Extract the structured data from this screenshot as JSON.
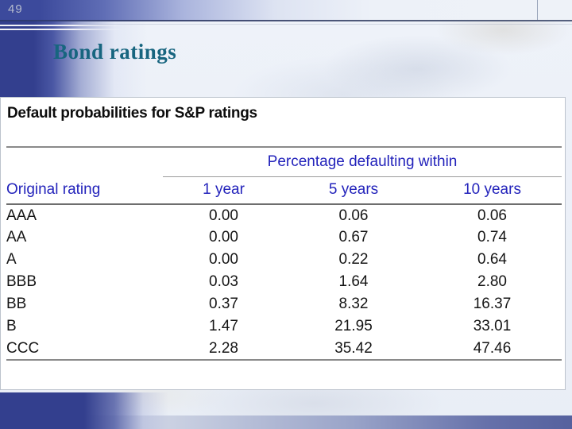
{
  "slide": {
    "page_number": "49",
    "title": "Bond ratings"
  },
  "table": {
    "heading": "Default probabilities for S&P ratings",
    "span_header": "Percentage defaulting within",
    "columns": [
      "Original rating",
      "1 year",
      "5 years",
      "10 years"
    ],
    "rows": [
      [
        "AAA",
        "0.00",
        "0.06",
        "0.06"
      ],
      [
        "AA",
        "0.00",
        "0.67",
        "0.74"
      ],
      [
        "A",
        "0.00",
        "0.22",
        "0.64"
      ],
      [
        "BBB",
        "0.03",
        "1.64",
        "2.80"
      ],
      [
        "BB",
        "0.37",
        "8.32",
        "16.37"
      ],
      [
        "B",
        "1.47",
        "21.95",
        "33.01"
      ],
      [
        "CCC",
        "2.28",
        "35.42",
        "47.46"
      ]
    ]
  },
  "colors": {
    "accent_navy": "#333f8e",
    "title_teal": "#17657f",
    "table_header_blue": "#2323bb",
    "rule_gray": "#8a8a8a",
    "footer_slate_blue": "#55619e"
  }
}
